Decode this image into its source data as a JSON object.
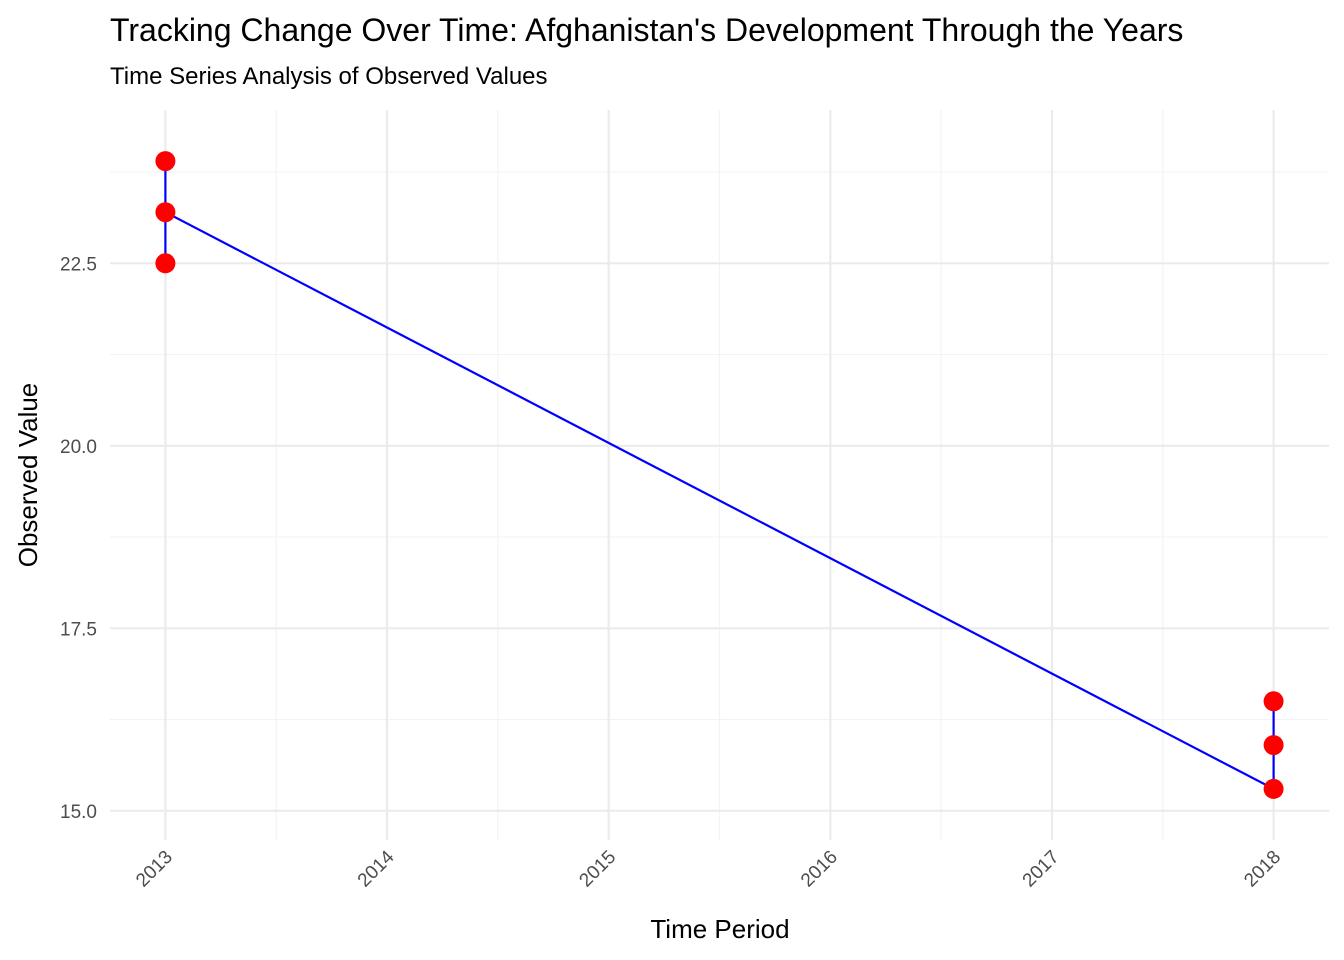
{
  "chart_data": {
    "type": "line",
    "title": "Tracking Change Over Time: Afghanistan's Development Through the Years",
    "subtitle": "Time Series Analysis of Observed Values",
    "xlabel": "Time Period",
    "ylabel": "Observed Value",
    "x_ticks": [
      "2013",
      "2014",
      "2015",
      "2016",
      "2017",
      "2018"
    ],
    "y_ticks": [
      "15.0",
      "17.5",
      "20.0",
      "22.5"
    ],
    "xlim": [
      2012.75,
      2018.25
    ],
    "ylim": [
      14.6,
      24.6
    ],
    "grid": true,
    "legend": "none",
    "series": [
      {
        "points": [
          {
            "x": 2013,
            "y": 23.9
          },
          {
            "x": 2013,
            "y": 22.5
          },
          {
            "x": 2013,
            "y": 23.2
          },
          {
            "x": 2018,
            "y": 15.3
          },
          {
            "x": 2018,
            "y": 16.5
          },
          {
            "x": 2018,
            "y": 15.9
          }
        ],
        "line_color": "#0000ff",
        "point_color": "#ff0000"
      }
    ]
  }
}
